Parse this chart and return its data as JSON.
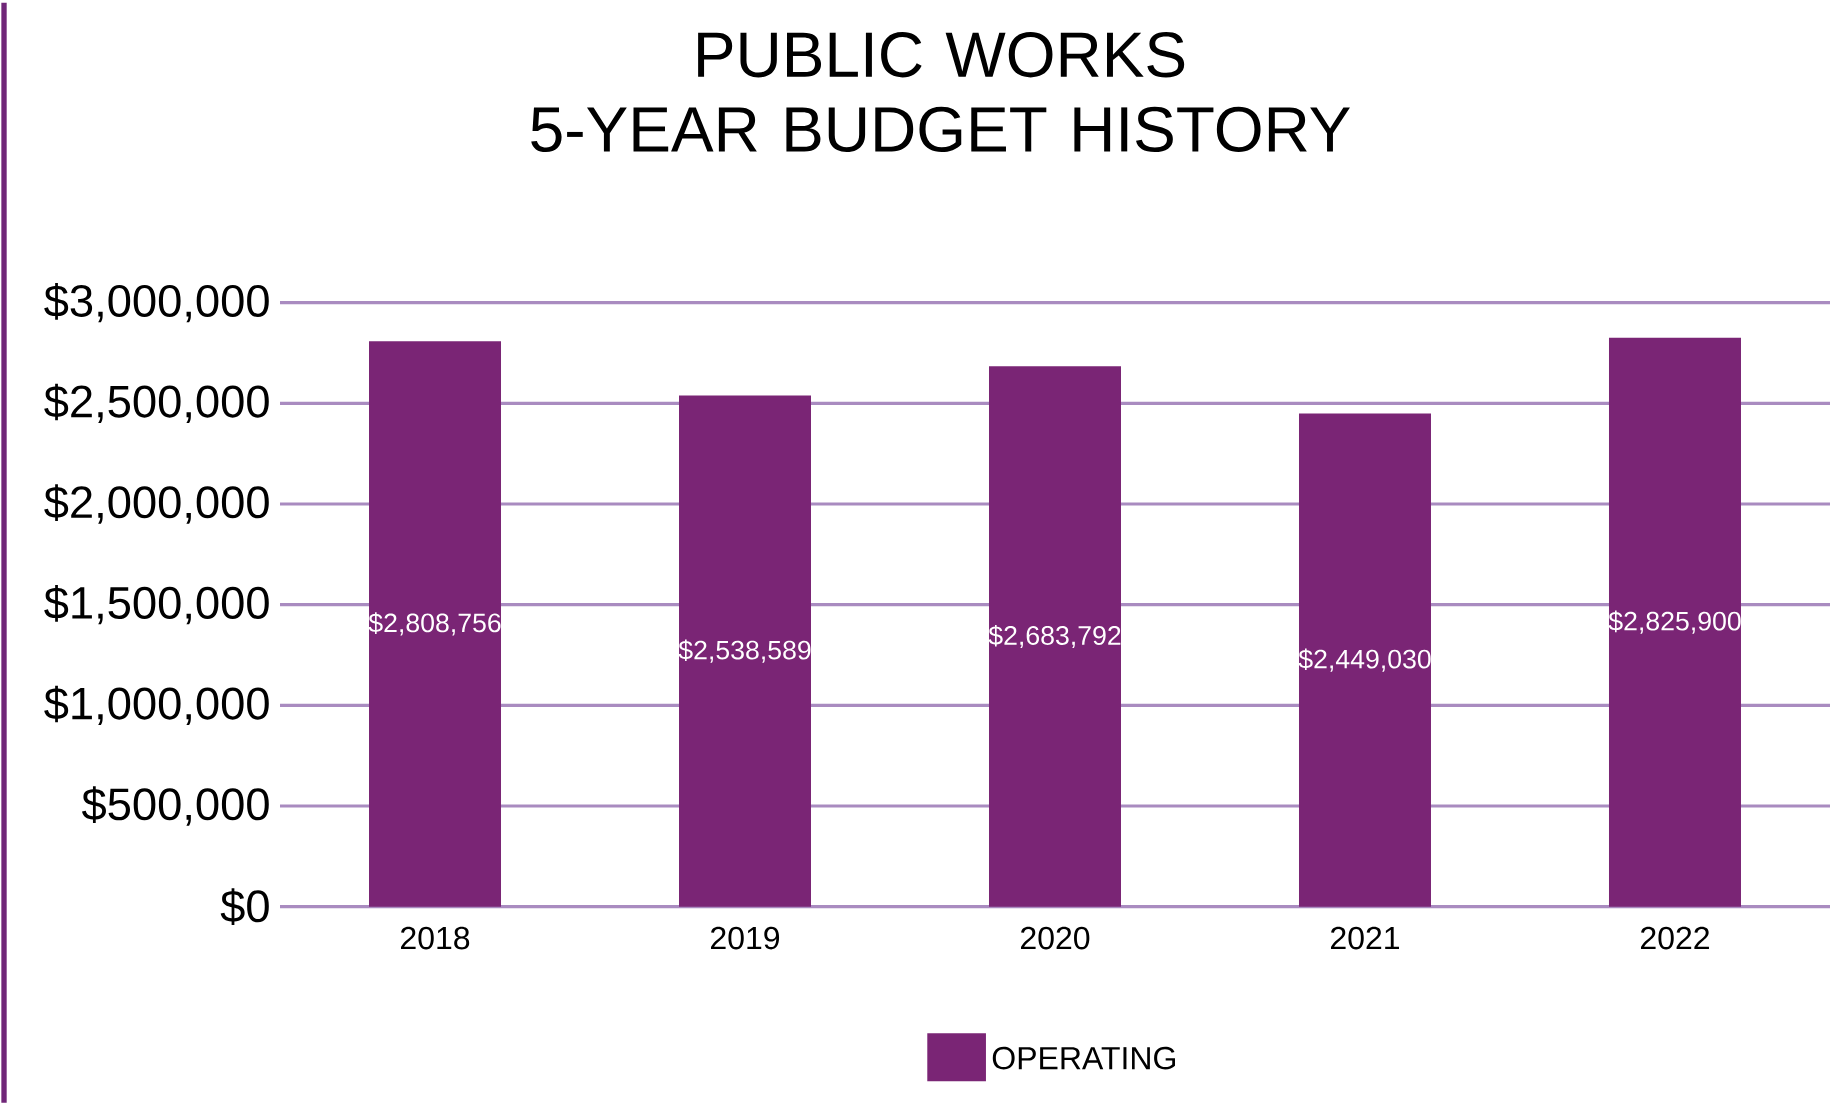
{
  "chart_data": {
    "type": "bar",
    "title": "PUBLIC WORKS\n5-YEAR BUDGET HISTORY",
    "categories": [
      "2018",
      "2019",
      "2020",
      "2021",
      "2022"
    ],
    "series": [
      {
        "name": "OPERATING",
        "color": "#7a2575",
        "values": [
          2808756,
          2538589,
          2683792,
          2449030,
          2825900
        ],
        "value_labels": [
          "$2,808,756",
          "$2,538,589",
          "$2,683,792",
          "$2,449,030",
          "$2,825,900"
        ]
      }
    ],
    "ylim": [
      0,
      3000000
    ],
    "yticks": [
      {
        "value": 0,
        "label": "$0"
      },
      {
        "value": 500000,
        "label": "$500,000"
      },
      {
        "value": 1000000,
        "label": "$1,000,000"
      },
      {
        "value": 1500000,
        "label": "$1,500,000"
      },
      {
        "value": 2000000,
        "label": "$2,000,000"
      },
      {
        "value": 2500000,
        "label": "$2,500,000"
      },
      {
        "value": 3000000,
        "label": "$3,000,000"
      }
    ],
    "grid": "y",
    "legend": "bottom"
  }
}
